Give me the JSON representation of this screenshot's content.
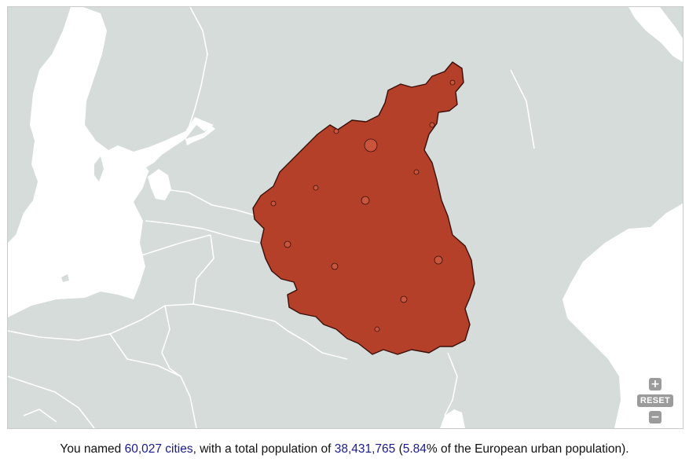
{
  "colors": {
    "water": "#ffffff",
    "land": "#d5dcd9",
    "border": "#ffffff",
    "marker_fill": "#b5402a",
    "marker_stroke": "#3a0f08",
    "highlight_text": "#1a1a8c",
    "control_bg": "#9b9b9b"
  },
  "map": {
    "region": "Eastern Europe (Baltic Sea to Ukraine)",
    "markers_layer": "named-cities-cluster"
  },
  "controls": {
    "zoom_in_icon": "plus-icon",
    "zoom_in_glyph": "+",
    "reset_label": "RESET",
    "zoom_out_icon": "minus-icon",
    "zoom_out_glyph": "−"
  },
  "summary": {
    "prefix": "You named ",
    "city_count": "60,027 cities",
    "middle": ", with a total population of ",
    "population": "38,431,765",
    "open_paren": " (",
    "percent": "5.84",
    "suffix": "% of the European urban population)."
  }
}
